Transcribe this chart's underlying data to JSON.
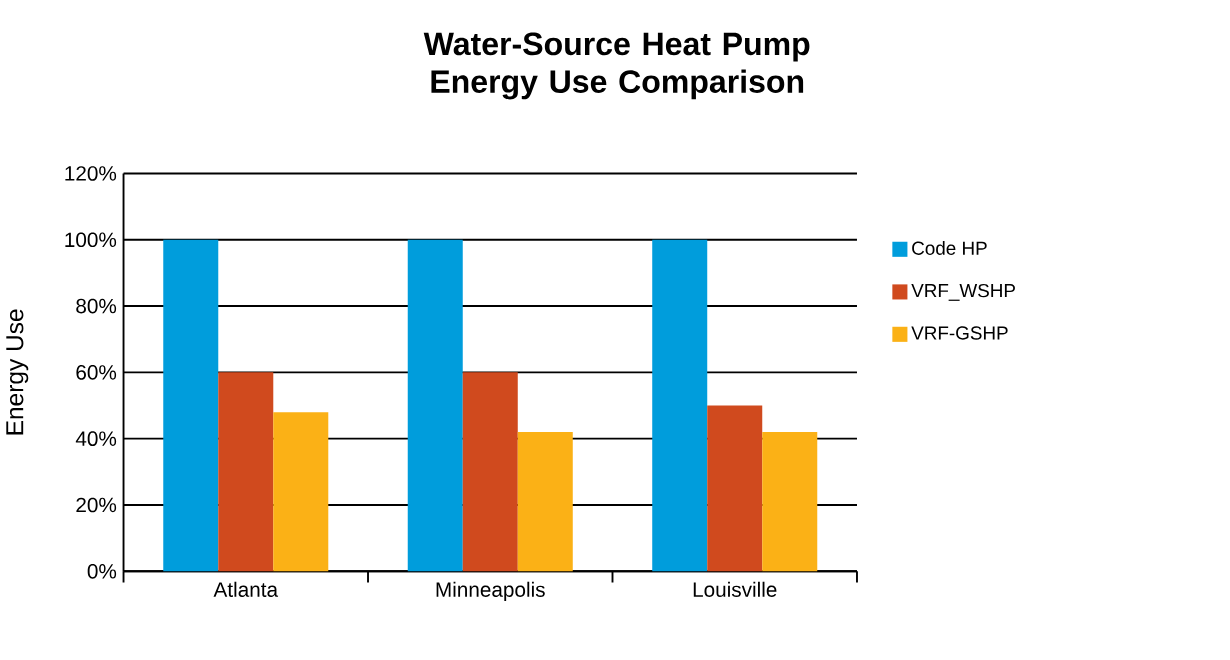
{
  "chart_data": {
    "type": "bar",
    "title": "Water-Source Heat Pump Energy Use Comparison",
    "ylabel": "Energy Use",
    "categories": [
      "Atlanta",
      "Minneapolis",
      "Louisville"
    ],
    "series": [
      {
        "name": "Code HP",
        "color": "#009ddc",
        "values": [
          100,
          100,
          100
        ]
      },
      {
        "name": "VRF_WSHP",
        "color": "#d04a1e",
        "values": [
          60,
          60,
          50
        ]
      },
      {
        "name": "VRF-GSHP",
        "color": "#fbb116",
        "values": [
          48,
          42,
          42
        ]
      }
    ],
    "ylim": [
      0,
      120
    ],
    "yticks": [
      {
        "value": 0,
        "label": "0%"
      },
      {
        "value": 20,
        "label": "20%"
      },
      {
        "value": 40,
        "label": "40%"
      },
      {
        "value": 60,
        "label": "60%"
      },
      {
        "value": 80,
        "label": "80%"
      },
      {
        "value": 100,
        "label": "100%"
      },
      {
        "value": 120,
        "label": "120%"
      }
    ],
    "grid": "y",
    "legend": "right"
  }
}
